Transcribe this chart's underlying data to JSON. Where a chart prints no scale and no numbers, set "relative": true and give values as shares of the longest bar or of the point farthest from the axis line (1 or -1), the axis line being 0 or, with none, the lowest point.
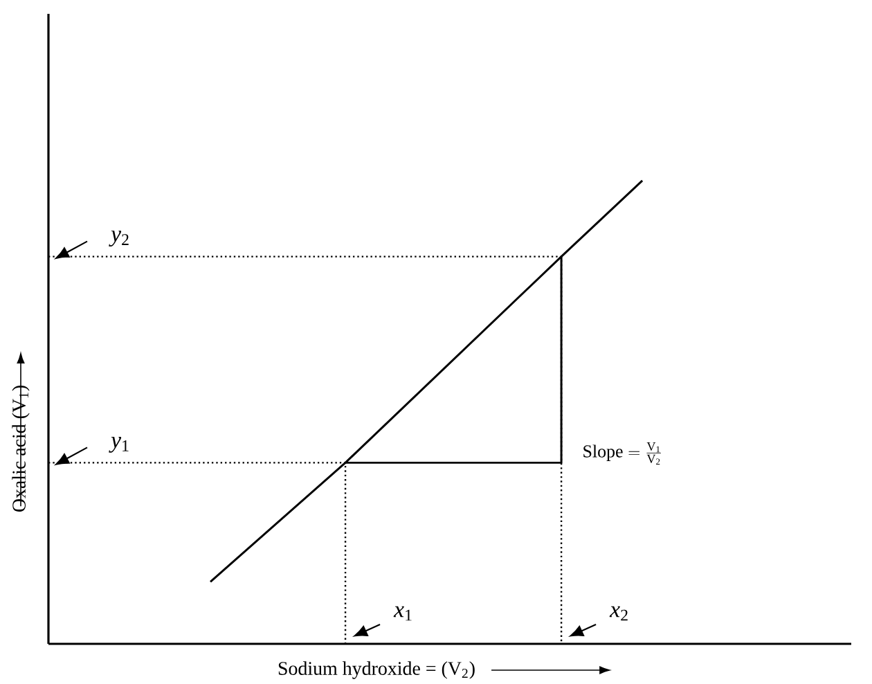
{
  "chart_data": {
    "type": "line",
    "relative": true,
    "xlabel": "Sodium hydroxide = (V$_{2}$)",
    "ylabel": "Oxalic acid (V$_{1}$)",
    "tick_labels": false,
    "categories": [
      null,
      null,
      null,
      null,
      null,
      null,
      null,
      null,
      null,
      null,
      null,
      null,
      null,
      null,
      null,
      null,
      null,
      null,
      null,
      null,
      null,
      null,
      null,
      null,
      null,
      null,
      null,
      null,
      null,
      null
    ],
    "series": [
      {
        "values": [
          null,
          null,
          null,
          null,
          null,
          null,
          0.134,
          null,
          null,
          null,
          null,
          0.391,
          null,
          null,
          null,
          null,
          null,
          null,
          null,
          0.836,
          null,
          null,
          1,
          null,
          null,
          null,
          null,
          null,
          null,
          null
        ],
        "color": "#000000",
        "line_style": "solid"
      },
      {
        "type": "step",
        "values": [
          null,
          null,
          null,
          null,
          null,
          null,
          null,
          null,
          null,
          null,
          null,
          0.391,
          null,
          null,
          null,
          null,
          null,
          null,
          null,
          0.836,
          null,
          null,
          null,
          null,
          null,
          null,
          null,
          null,
          null,
          null
        ],
        "color": "#000000",
        "line_style": "solid"
      },
      {
        "type": "step",
        "values": [
          0.391,
          null,
          null,
          null,
          null,
          null,
          null,
          null,
          null,
          null,
          null,
          0,
          null,
          null,
          null,
          null,
          null,
          null,
          null,
          null,
          null,
          null,
          null,
          null,
          null,
          null,
          null,
          null,
          null,
          null
        ],
        "color": "#000000",
        "line_style": "dotted"
      },
      {
        "type": "step",
        "values": [
          0.836,
          null,
          null,
          null,
          null,
          null,
          null,
          null,
          null,
          null,
          null,
          null,
          null,
          null,
          null,
          null,
          null,
          null,
          null,
          0,
          null,
          null,
          null,
          null,
          null,
          null,
          null,
          null,
          null,
          null
        ],
        "color": "#000000",
        "line_style": "dotted"
      }
    ],
    "annotations": [
      "*x*$_{1}$",
      "*x*$_{2}$",
      "*y*$_{1}$",
      "*y*$_{2}$",
      "\\mathrm{Slope} = \\frac{\\mathrm{V_1}}{\\mathrm{V_2}}"
    ]
  }
}
